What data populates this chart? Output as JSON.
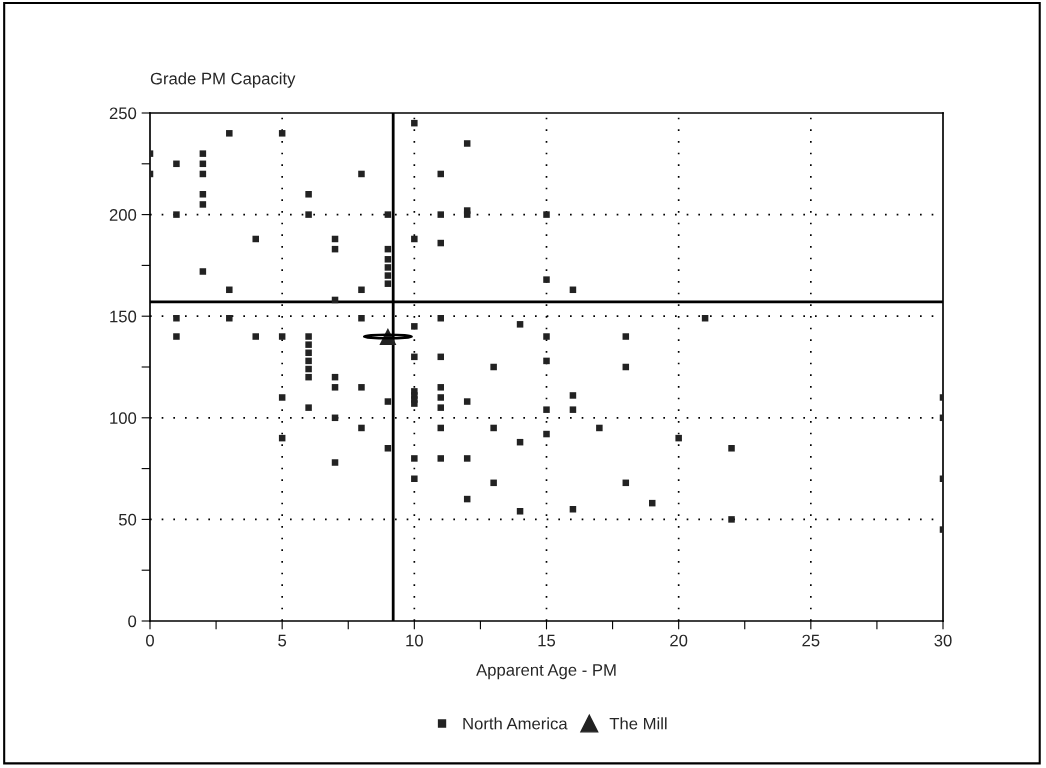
{
  "chart_data": {
    "type": "scatter",
    "ylabel": "Grade PM Capacity",
    "xlabel": "Apparent Age - PM",
    "xlim": [
      0,
      30
    ],
    "ylim": [
      0,
      250
    ],
    "xticks": [
      0,
      {
        "value": 2.5,
        "label": null
      },
      5,
      {
        "value": 7.5,
        "label": null
      },
      10,
      {
        "value": 12.5,
        "label": null
      },
      15,
      {
        "value": 17.5,
        "label": null
      },
      20,
      {
        "value": 22.5,
        "label": null
      },
      25,
      {
        "value": 27.5,
        "label": null
      },
      30
    ],
    "yticks": [
      0,
      {
        "value": 25,
        "label": null
      },
      50,
      {
        "value": 75,
        "label": null
      },
      100,
      {
        "value": 125,
        "label": null
      },
      150,
      {
        "value": 175,
        "label": null
      },
      200,
      {
        "value": 225,
        "label": null
      },
      250
    ],
    "grid": true,
    "legend": "bottom",
    "ref_lines": [
      {
        "axis": "x",
        "value": 9.2,
        "color": "#000000",
        "line_style": "solid"
      },
      {
        "axis": "y",
        "value": 157,
        "color": "#000000",
        "line_style": "solid"
      }
    ],
    "series": [
      {
        "name": "North America",
        "color": "#222222",
        "marker": "square",
        "x": [
          0,
          0,
          1,
          1,
          1,
          1,
          2,
          2,
          2,
          2,
          2,
          2,
          3,
          3,
          3,
          4,
          4,
          5,
          5,
          5,
          5,
          6,
          6,
          6,
          6,
          6,
          6,
          6,
          6,
          6,
          7,
          7,
          7,
          7,
          7,
          7,
          7,
          8,
          8,
          8,
          8,
          8,
          9,
          9,
          9,
          9,
          9,
          9,
          9,
          9,
          10,
          10,
          10,
          10,
          10,
          10,
          10,
          10,
          10,
          10,
          11,
          11,
          11,
          11,
          11,
          11,
          11,
          11,
          11,
          11,
          12,
          12,
          12,
          12,
          12,
          12,
          13,
          13,
          13,
          14,
          14,
          14,
          15,
          15,
          15,
          15,
          15,
          15,
          16,
          16,
          16,
          16,
          17,
          18,
          18,
          18,
          19,
          20,
          21,
          22,
          22,
          30,
          30,
          30,
          30
        ],
        "values": [
          230,
          220,
          225,
          200,
          149,
          140,
          230,
          225,
          220,
          210,
          205,
          172,
          240,
          163,
          149,
          188,
          140,
          240,
          140,
          110,
          90,
          210,
          200,
          140,
          136,
          132,
          128,
          124,
          120,
          105,
          188,
          183,
          158,
          120,
          115,
          100,
          78,
          220,
          163,
          149,
          115,
          95,
          200,
          183,
          178,
          174,
          170,
          166,
          108,
          85,
          245,
          188,
          145,
          130,
          113,
          111,
          109,
          107,
          80,
          70,
          220,
          200,
          186,
          149,
          130,
          115,
          110,
          105,
          95,
          80,
          235,
          202,
          200,
          108,
          80,
          60,
          125,
          95,
          68,
          146,
          88,
          54,
          200,
          168,
          140,
          128,
          104,
          92,
          163,
          111,
          104,
          55,
          95,
          140,
          125,
          68,
          58,
          90,
          149,
          85,
          50,
          110,
          100,
          70,
          45
        ]
      },
      {
        "name": "The Mill",
        "color": "#222222",
        "marker": "triangle",
        "x": [
          9
        ],
        "values": [
          140
        ]
      }
    ]
  }
}
